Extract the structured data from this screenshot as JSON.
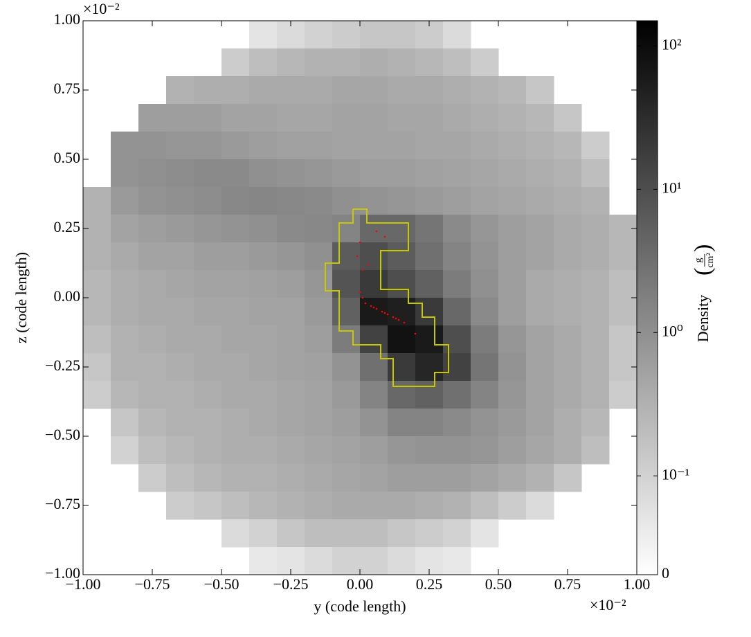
{
  "chart_data": {
    "type": "heatmap",
    "x_label": "y  (code length)",
    "y_label": "z  (code length)",
    "x_offset": "×10⁻²",
    "y_offset": "×10⁻²",
    "colorbar_label": "Density",
    "colorbar_unit_num": "g",
    "colorbar_unit_den": "cm²",
    "colormap": "binary",
    "cscale": "symlog",
    "linthresh": 0.1,
    "clim": [
      0,
      150
    ],
    "cticks": [
      0,
      {
        "value": 0.1,
        "label": "10⁻¹"
      },
      {
        "value": 1,
        "label": "10⁰"
      },
      {
        "value": 10,
        "label": "10¹"
      },
      {
        "value": 100,
        "label": "10²"
      }
    ],
    "xlim": [
      -1,
      1
    ],
    "ylim": [
      -1,
      1
    ],
    "xticks": [
      {
        "value": -1,
        "label": "−1.00"
      },
      {
        "value": -0.75,
        "label": "−0.75"
      },
      {
        "value": -0.5,
        "label": "−0.50"
      },
      {
        "value": -0.25,
        "label": "−0.25"
      },
      {
        "value": 0,
        "label": "0.00"
      },
      {
        "value": 0.25,
        "label": "0.25"
      },
      {
        "value": 0.5,
        "label": "0.50"
      },
      {
        "value": 0.75,
        "label": "0.75"
      },
      {
        "value": 1,
        "label": "1.00"
      }
    ],
    "yticks": [
      {
        "value": -1,
        "label": "−1.00"
      },
      {
        "value": -0.75,
        "label": "−0.75"
      },
      {
        "value": -0.5,
        "label": "−0.50"
      },
      {
        "value": -0.25,
        "label": "−0.25"
      },
      {
        "value": 0,
        "label": "0.00"
      },
      {
        "value": 0.25,
        "label": "0.25"
      },
      {
        "value": 0.5,
        "label": "0.50"
      },
      {
        "value": 0.75,
        "label": "0.75"
      },
      {
        "value": 1,
        "label": "1.00"
      }
    ],
    "x": [
      -0.95,
      -0.85,
      -0.75,
      -0.65,
      -0.55,
      -0.45,
      -0.35,
      -0.25,
      -0.15,
      -0.05,
      0.05,
      0.15,
      0.25,
      0.35,
      0.45,
      0.55,
      0.65,
      0.75,
      0.85,
      0.95
    ],
    "y": [
      0.95,
      0.85,
      0.75,
      0.65,
      0.55,
      0.45,
      0.35,
      0.25,
      0.15,
      0.05,
      -0.05,
      -0.15,
      -0.25,
      -0.35,
      -0.45,
      -0.55,
      -0.65,
      -0.75,
      -0.85,
      -0.95
    ],
    "values": [
      [
        null,
        null,
        null,
        null,
        null,
        null,
        0.06,
        0.08,
        0.1,
        0.12,
        0.15,
        0.15,
        0.12,
        0.08,
        null,
        null,
        null,
        null,
        null,
        null
      ],
      [
        null,
        null,
        null,
        null,
        null,
        0.12,
        0.2,
        0.25,
        0.3,
        0.3,
        0.35,
        0.3,
        0.25,
        0.2,
        0.12,
        null,
        null,
        null,
        null,
        null
      ],
      [
        null,
        null,
        null,
        0.3,
        0.35,
        0.35,
        0.4,
        0.4,
        0.4,
        0.45,
        0.45,
        0.4,
        0.4,
        0.35,
        0.3,
        0.25,
        0.15,
        null,
        null,
        null
      ],
      [
        null,
        null,
        0.6,
        0.6,
        0.6,
        0.5,
        0.5,
        0.45,
        0.45,
        0.5,
        0.5,
        0.45,
        0.45,
        0.4,
        0.35,
        0.3,
        0.25,
        0.15,
        null,
        null
      ],
      [
        null,
        0.9,
        0.9,
        0.8,
        0.8,
        0.7,
        0.6,
        0.55,
        0.55,
        0.5,
        0.5,
        0.5,
        0.45,
        0.45,
        0.4,
        0.35,
        0.3,
        0.25,
        0.12,
        null
      ],
      [
        null,
        0.9,
        1.0,
        1.1,
        1.2,
        1.2,
        1.0,
        0.9,
        0.8,
        0.7,
        0.6,
        0.6,
        0.55,
        0.5,
        0.45,
        0.4,
        0.35,
        0.3,
        0.2,
        null
      ],
      [
        0.3,
        0.7,
        0.9,
        1.0,
        1.1,
        1.3,
        1.4,
        1.3,
        1.2,
        1.0,
        0.9,
        0.8,
        0.7,
        0.6,
        0.5,
        0.45,
        0.4,
        0.35,
        0.3,
        null
      ],
      [
        0.3,
        0.5,
        0.6,
        0.7,
        0.8,
        0.9,
        1.0,
        1.2,
        1.3,
        1.5,
        4,
        4,
        2.5,
        1.2,
        0.8,
        0.6,
        0.5,
        0.4,
        0.35,
        0.25
      ],
      [
        0.3,
        0.4,
        0.5,
        0.5,
        0.6,
        0.6,
        0.7,
        0.8,
        1.0,
        6,
        10,
        6,
        3,
        1.5,
        0.9,
        0.6,
        0.5,
        0.4,
        0.35,
        0.25
      ],
      [
        0.25,
        0.35,
        0.4,
        0.45,
        0.5,
        0.5,
        0.55,
        0.6,
        0.8,
        8,
        20,
        10,
        5,
        2,
        1.0,
        0.6,
        0.4,
        0.35,
        0.3,
        0.2
      ],
      [
        0.25,
        0.35,
        0.4,
        0.4,
        0.45,
        0.45,
        0.5,
        0.5,
        0.7,
        5,
        60,
        50,
        20,
        4,
        1.2,
        0.6,
        0.4,
        0.35,
        0.3,
        0.2
      ],
      [
        0.2,
        0.3,
        0.35,
        0.4,
        0.4,
        0.45,
        0.45,
        0.5,
        0.6,
        2,
        15,
        80,
        60,
        10,
        2,
        0.8,
        0.5,
        0.4,
        0.3,
        0.15
      ],
      [
        0.15,
        0.3,
        0.3,
        0.35,
        0.4,
        0.4,
        0.45,
        0.5,
        0.55,
        0.9,
        3,
        20,
        40,
        15,
        2.5,
        0.9,
        0.5,
        0.4,
        0.3,
        0.15
      ],
      [
        0.12,
        0.25,
        0.3,
        0.3,
        0.35,
        0.4,
        0.4,
        0.45,
        0.5,
        0.7,
        1.5,
        4,
        5,
        3,
        1.5,
        0.8,
        0.5,
        0.4,
        0.3,
        0.12
      ],
      [
        null,
        0.15,
        0.25,
        0.3,
        0.3,
        0.35,
        0.4,
        0.45,
        0.5,
        0.6,
        0.9,
        1.5,
        1.5,
        1.2,
        0.9,
        0.7,
        0.5,
        0.35,
        0.25,
        null
      ],
      [
        null,
        0.1,
        0.2,
        0.25,
        0.3,
        0.35,
        0.35,
        0.4,
        0.45,
        0.5,
        0.6,
        0.8,
        0.9,
        0.9,
        0.8,
        0.6,
        0.45,
        0.35,
        0.2,
        null
      ],
      [
        null,
        null,
        0.12,
        0.2,
        0.25,
        0.3,
        0.3,
        0.35,
        0.4,
        0.45,
        0.5,
        0.6,
        0.6,
        0.6,
        0.5,
        0.4,
        0.3,
        0.15,
        null,
        null
      ],
      [
        null,
        null,
        null,
        0.12,
        0.15,
        0.2,
        0.25,
        0.3,
        0.35,
        0.4,
        0.4,
        0.4,
        0.35,
        0.3,
        0.2,
        0.12,
        0.08,
        null,
        null,
        null
      ],
      [
        null,
        null,
        null,
        null,
        null,
        0.08,
        0.1,
        0.15,
        0.2,
        0.2,
        0.2,
        0.15,
        0.12,
        0.1,
        0.06,
        null,
        null,
        null,
        null,
        null
      ],
      [
        null,
        null,
        null,
        null,
        null,
        null,
        0.05,
        0.06,
        0.08,
        0.1,
        0.1,
        0.08,
        0.06,
        0.05,
        null,
        null,
        null,
        null,
        null,
        null
      ]
    ],
    "contour": {
      "color": "#c8c800",
      "x": [
        -0.025,
        0.025,
        0.025,
        0.175,
        0.175,
        0.075,
        0.075,
        0.175,
        0.175,
        0.225,
        0.225,
        0.27,
        0.27,
        0.32,
        0.32,
        0.27,
        0.27,
        0.12,
        0.12,
        0.075,
        0.075,
        -0.025,
        -0.025,
        -0.075,
        -0.075,
        -0.125,
        -0.125,
        -0.075,
        -0.075,
        -0.025,
        -0.025
      ],
      "y": [
        0.32,
        0.32,
        0.27,
        0.27,
        0.17,
        0.17,
        0.03,
        0.03,
        -0.02,
        -0.02,
        -0.07,
        -0.07,
        -0.17,
        -0.17,
        -0.27,
        -0.27,
        -0.32,
        -0.32,
        -0.22,
        -0.22,
        -0.17,
        -0.17,
        -0.12,
        -0.12,
        0.025,
        0.025,
        0.125,
        0.125,
        0.27,
        0.27,
        0.32
      ]
    },
    "particles": {
      "color": "#ff0000",
      "x": [
        0.0,
        0.01,
        0.02,
        0.04,
        0.05,
        0.06,
        0.08,
        0.09,
        0.1,
        0.12,
        0.13,
        0.14,
        0.16,
        -0.01,
        0.0,
        0.01,
        0.06,
        0.03,
        0.2,
        0.09
      ],
      "y": [
        0.02,
        0.0,
        -0.02,
        -0.03,
        -0.035,
        -0.04,
        -0.05,
        -0.055,
        -0.06,
        -0.07,
        -0.075,
        -0.08,
        -0.09,
        0.15,
        0.2,
        0.1,
        0.24,
        0.12,
        -0.13,
        0.22
      ]
    }
  }
}
